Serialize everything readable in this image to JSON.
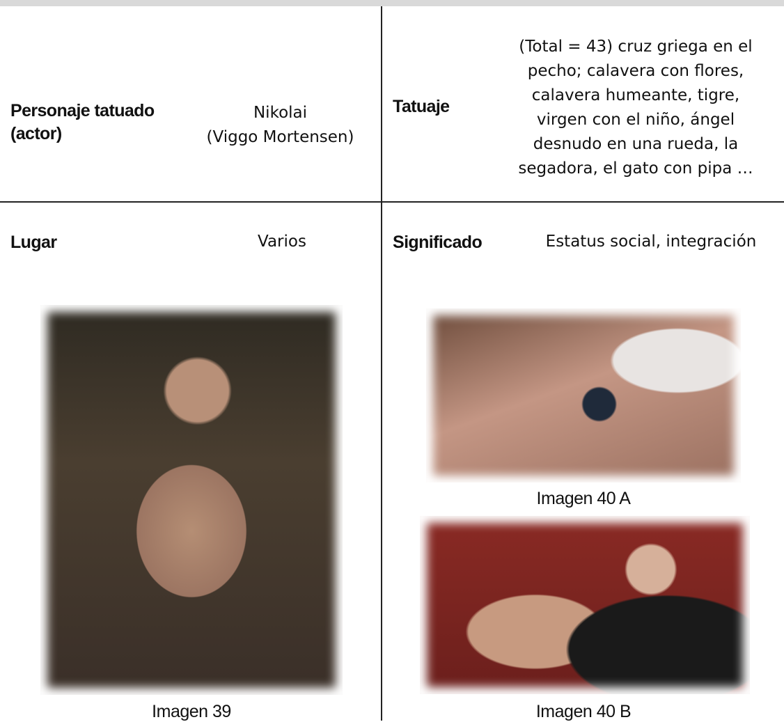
{
  "table": {
    "rows": [
      {
        "label": [
          "Personaje tatuado",
          "(actor)"
        ],
        "value": [
          "Nikolai",
          "(Viggo Mortensen)"
        ],
        "label2": "Tatuaje",
        "value2": [
          "(Total = 43) cruz griega en el",
          "pecho; calavera con flores,",
          "calavera humeante, tigre,",
          "virgen con el niño, ángel",
          "desnudo en una rueda, la",
          "segadora, el gato con pipa …"
        ]
      },
      {
        "label": "Lugar",
        "value": "Varios",
        "label2": "Significado",
        "value2": "Estatus social, integración"
      }
    ]
  },
  "figures": [
    {
      "caption": "Imagen 39"
    },
    {
      "caption": "Imagen 40 A"
    },
    {
      "caption": "Imagen 40 B"
    }
  ]
}
